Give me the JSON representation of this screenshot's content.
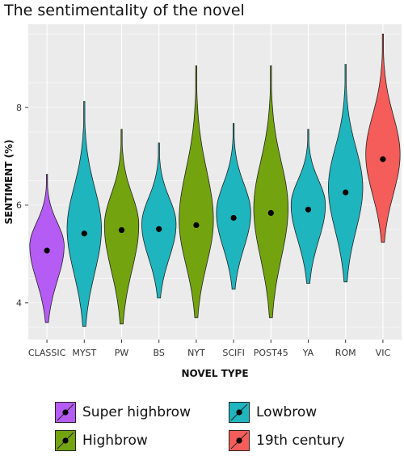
{
  "title": "The sentimentality of the novel",
  "chart_data": {
    "type": "violin",
    "title": "The sentimentality of the novel",
    "xlabel": "NOVEL TYPE",
    "ylabel": "SENTIMENT (%)",
    "ylim": [
      3.25,
      9.7
    ],
    "yticks": [
      4,
      6,
      8
    ],
    "grid": true,
    "legend_position": "bottom",
    "categories": [
      "CLASSIC",
      "MYST",
      "PW",
      "BS",
      "NYT",
      "SCIFI",
      "POST45",
      "YA",
      "ROM",
      "VIC"
    ],
    "groups": [
      "Super highbrow",
      "Lowbrow",
      "Highbrow",
      "Lowbrow",
      "Highbrow",
      "Lowbrow",
      "Highbrow",
      "Lowbrow",
      "Lowbrow",
      "19th century"
    ],
    "points": [
      {
        "category": "CLASSIC",
        "mean": 5.07,
        "min": 3.6,
        "max": 6.63
      },
      {
        "category": "MYST",
        "mean": 5.42,
        "min": 3.52,
        "max": 8.12
      },
      {
        "category": "PW",
        "mean": 5.49,
        "min": 3.57,
        "max": 7.55
      },
      {
        "category": "BS",
        "mean": 5.51,
        "min": 4.1,
        "max": 7.27
      },
      {
        "category": "NYT",
        "mean": 5.59,
        "min": 3.7,
        "max": 8.85
      },
      {
        "category": "SCIFI",
        "mean": 5.74,
        "min": 4.28,
        "max": 7.67
      },
      {
        "category": "POST45",
        "mean": 5.84,
        "min": 3.7,
        "max": 8.85
      },
      {
        "category": "YA",
        "mean": 5.91,
        "min": 4.4,
        "max": 7.55
      },
      {
        "category": "ROM",
        "mean": 6.26,
        "min": 4.43,
        "max": 8.88
      },
      {
        "category": "VIC",
        "mean": 6.94,
        "min": 5.24,
        "max": 9.5
      }
    ],
    "legend": [
      {
        "name": "Super highbrow",
        "color": "#B55CF5"
      },
      {
        "name": "Lowbrow",
        "color": "#1EB5BE"
      },
      {
        "name": "Highbrow",
        "color": "#74A310"
      },
      {
        "name": "19th century",
        "color": "#F45D59"
      }
    ]
  }
}
